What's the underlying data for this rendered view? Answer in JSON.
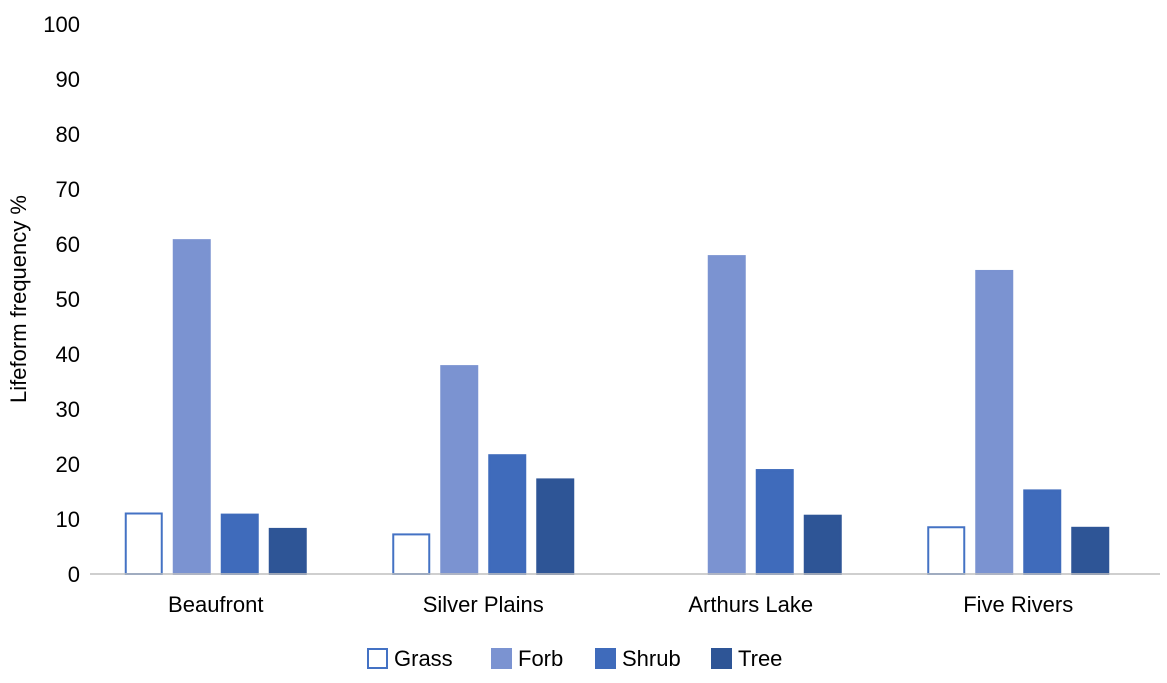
{
  "chart_data": {
    "type": "bar",
    "title": "",
    "xlabel": "",
    "ylabel": "Lifeform frequency %",
    "ylim": [
      0,
      100
    ],
    "yticks": [
      0,
      10,
      20,
      30,
      40,
      50,
      60,
      70,
      80,
      90,
      100
    ],
    "grid": false,
    "legend_position": "bottom",
    "categories": [
      "Beaufront",
      "Silver Plains",
      "Arthurs Lake",
      "Five Rivers"
    ],
    "series": [
      {
        "name": "Grass",
        "values": [
          11,
          7.2,
          0,
          8.5
        ],
        "color": "#ffffff",
        "stroke": "#4472c4"
      },
      {
        "name": "Forb",
        "values": [
          60.7,
          37.8,
          57.8,
          55.1
        ],
        "color": "#7b93d1",
        "stroke": "#7b93d1"
      },
      {
        "name": "Shrub",
        "values": [
          10.8,
          21.6,
          18.9,
          15.2
        ],
        "color": "#3f6bbb",
        "stroke": "#3f6bbb"
      },
      {
        "name": "Tree",
        "values": [
          8.2,
          17.2,
          10.6,
          8.4
        ],
        "color": "#2e5596",
        "stroke": "#2e5596"
      }
    ]
  }
}
